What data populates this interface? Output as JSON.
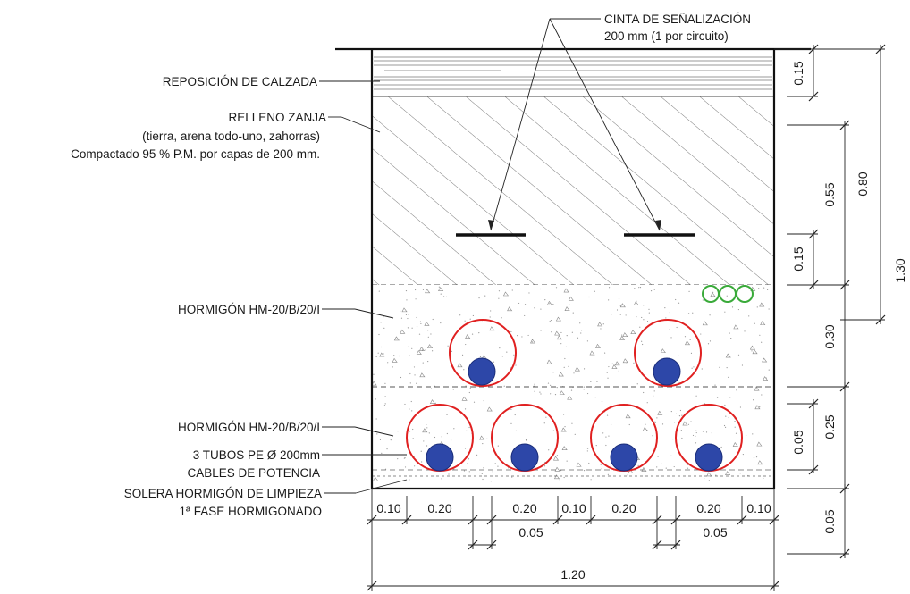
{
  "labels": {
    "cinta_1": "CINTA DE SEÑALIZACIÓN",
    "cinta_2": "200 mm (1 por circuito)",
    "reposicion": "REPOSICIÓN DE CALZADA",
    "relleno_1": "RELLENO ZANJA",
    "relleno_2": "(tierra, arena todo-uno, zahorras)",
    "relleno_3": "Compactado 95 % P.M. por capas de 200 mm.",
    "hormigon_top": "HORMIGÓN HM-20/B/20/I",
    "hormigon_bottom": "HORMIGÓN HM-20/B/20/I",
    "tubos": "3 TUBOS PE Ø 200mm",
    "cables": "CABLES DE POTENCIA",
    "solera_1": "SOLERA HORMIGÓN DE LIMPIEZA",
    "solera_2": "1ª FASE HORMIGONADO"
  },
  "dimensions": {
    "right_015_top": "0.15",
    "right_055": "0.55",
    "right_080": "0.80",
    "right_130": "1.30",
    "right_015_mid": "0.15",
    "right_030": "0.30",
    "right_025": "0.25",
    "right_005_inner": "0.05",
    "right_005_bottom": "0.05",
    "bottom_010_a": "0.10",
    "bottom_020_a": "0.20",
    "bottom_020_b": "0.20",
    "bottom_010_b": "0.10",
    "bottom_020_c": "0.20",
    "bottom_020_d": "0.20",
    "bottom_010_c": "0.10",
    "bottom_005_a": "0.05",
    "bottom_005_b": "0.05",
    "bottom_total": "1.20"
  },
  "colors": {
    "outline": "#111111",
    "duct": "#e02020",
    "cable": "#2d47a8",
    "small_duct": "#3aaa3a",
    "hatch": "#555555"
  }
}
